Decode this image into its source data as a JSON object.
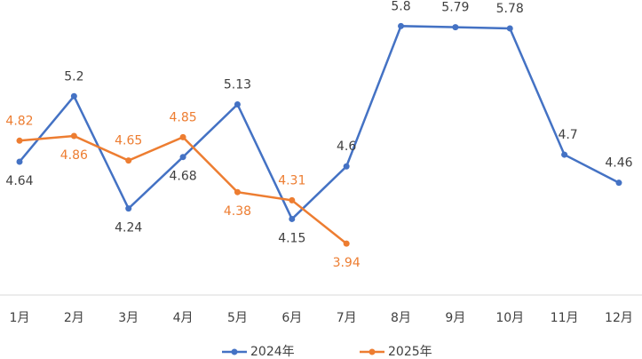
{
  "chart_data": {
    "type": "line",
    "categories": [
      "1月",
      "2月",
      "3月",
      "4月",
      "5月",
      "6月",
      "7月",
      "8月",
      "9月",
      "10月",
      "11月",
      "12月"
    ],
    "series": [
      {
        "name": "2024年",
        "color": "#4472c4",
        "values": [
          4.64,
          5.2,
          4.24,
          4.68,
          5.13,
          4.15,
          4.6,
          5.8,
          5.79,
          5.78,
          4.7,
          4.46
        ]
      },
      {
        "name": "2025年",
        "color": "#ed7d31",
        "values": [
          4.82,
          4.86,
          4.65,
          4.85,
          4.38,
          4.31,
          3.94,
          null,
          null,
          null,
          null,
          null
        ]
      }
    ],
    "ylim": [
      3.5,
      6.0
    ],
    "legend": "bottom"
  }
}
